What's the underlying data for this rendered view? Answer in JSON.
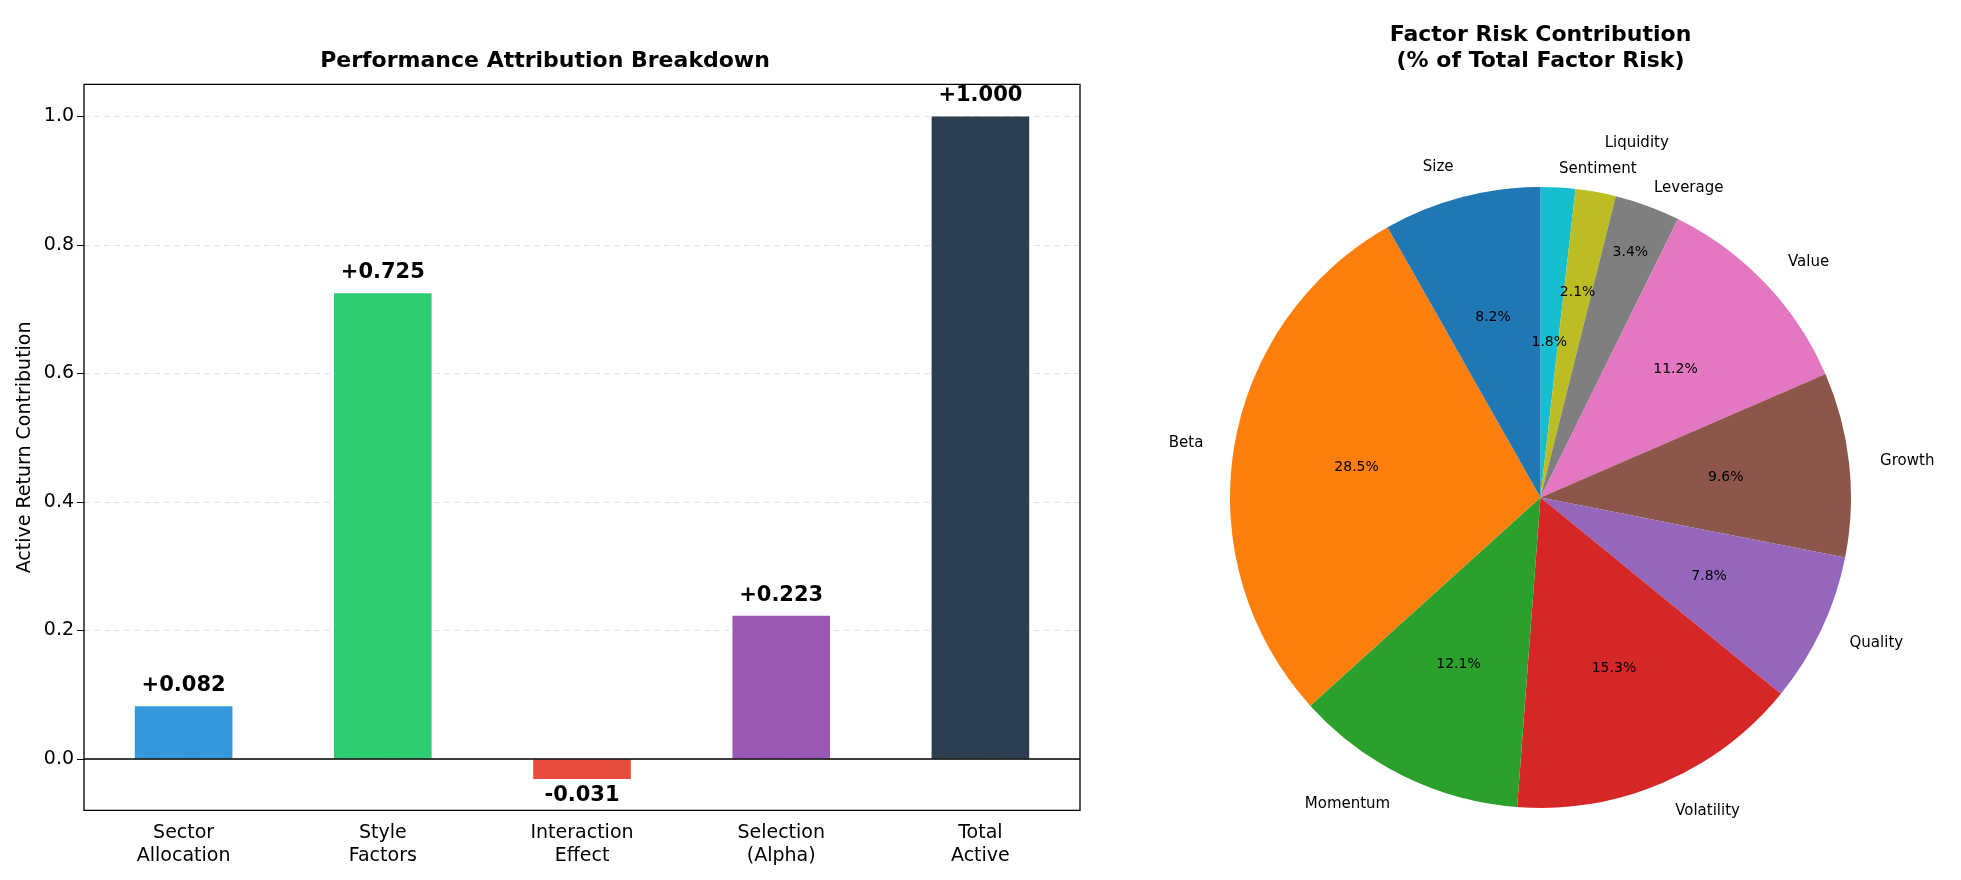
{
  "chart_data": [
    {
      "type": "bar",
      "title": "Performance Attribution Breakdown",
      "ylabel": "Active Return Contribution",
      "categories": [
        "Sector\nAllocation",
        "Style\nFactors",
        "Interaction\nEffect",
        "Selection\n(Alpha)",
        "Total\nActive"
      ],
      "values": [
        0.082,
        0.725,
        -0.031,
        0.223,
        1.0
      ],
      "colors": [
        "#3498db",
        "#2ecc71",
        "#e74c3c",
        "#9b59b6",
        "#2c3e50"
      ],
      "value_labels": [
        "+0.082",
        "+0.725",
        "-0.031",
        "+0.223",
        "+1.000"
      ],
      "ylim": [
        -0.08,
        1.05
      ],
      "yticks": [
        {
          "value": 0,
          "label": "0.0"
        },
        {
          "value": 0.2,
          "label": "0.2"
        },
        {
          "value": 0.4,
          "label": "0.4"
        },
        {
          "value": 0.6,
          "label": "0.6"
        },
        {
          "value": 0.8,
          "label": "0.8"
        },
        {
          "value": 1,
          "label": "1.0"
        }
      ],
      "grid": "y",
      "ref_lines": [
        {
          "axis": "y",
          "value": 0,
          "color": "#000000"
        }
      ]
    },
    {
      "type": "pie",
      "title": "Factor Risk Contribution\n(% of Total Factor Risk)",
      "categories": [
        "Sentiment",
        "Liquidity",
        "Leverage",
        "Value",
        "Growth",
        "Quality",
        "Volatility",
        "Momentum",
        "Beta",
        "Size"
      ],
      "values": [
        1.8,
        2.1,
        3.4,
        11.2,
        9.6,
        7.8,
        15.3,
        12.1,
        28.5,
        8.2
      ],
      "colors": [
        "#17becf",
        "#bcbd22",
        "#7f7f7f",
        "#e377c2",
        "#8c564b",
        "#9467bd",
        "#d62728",
        "#2ca02c",
        "#ff7f0e",
        "#1f77b4"
      ],
      "value_labels": [
        "1.8%",
        "2.1%",
        "3.4%",
        "11.2%",
        "9.6%",
        "7.8%",
        "15.3%",
        "12.1%",
        "28.5%",
        "8.2%"
      ]
    }
  ]
}
